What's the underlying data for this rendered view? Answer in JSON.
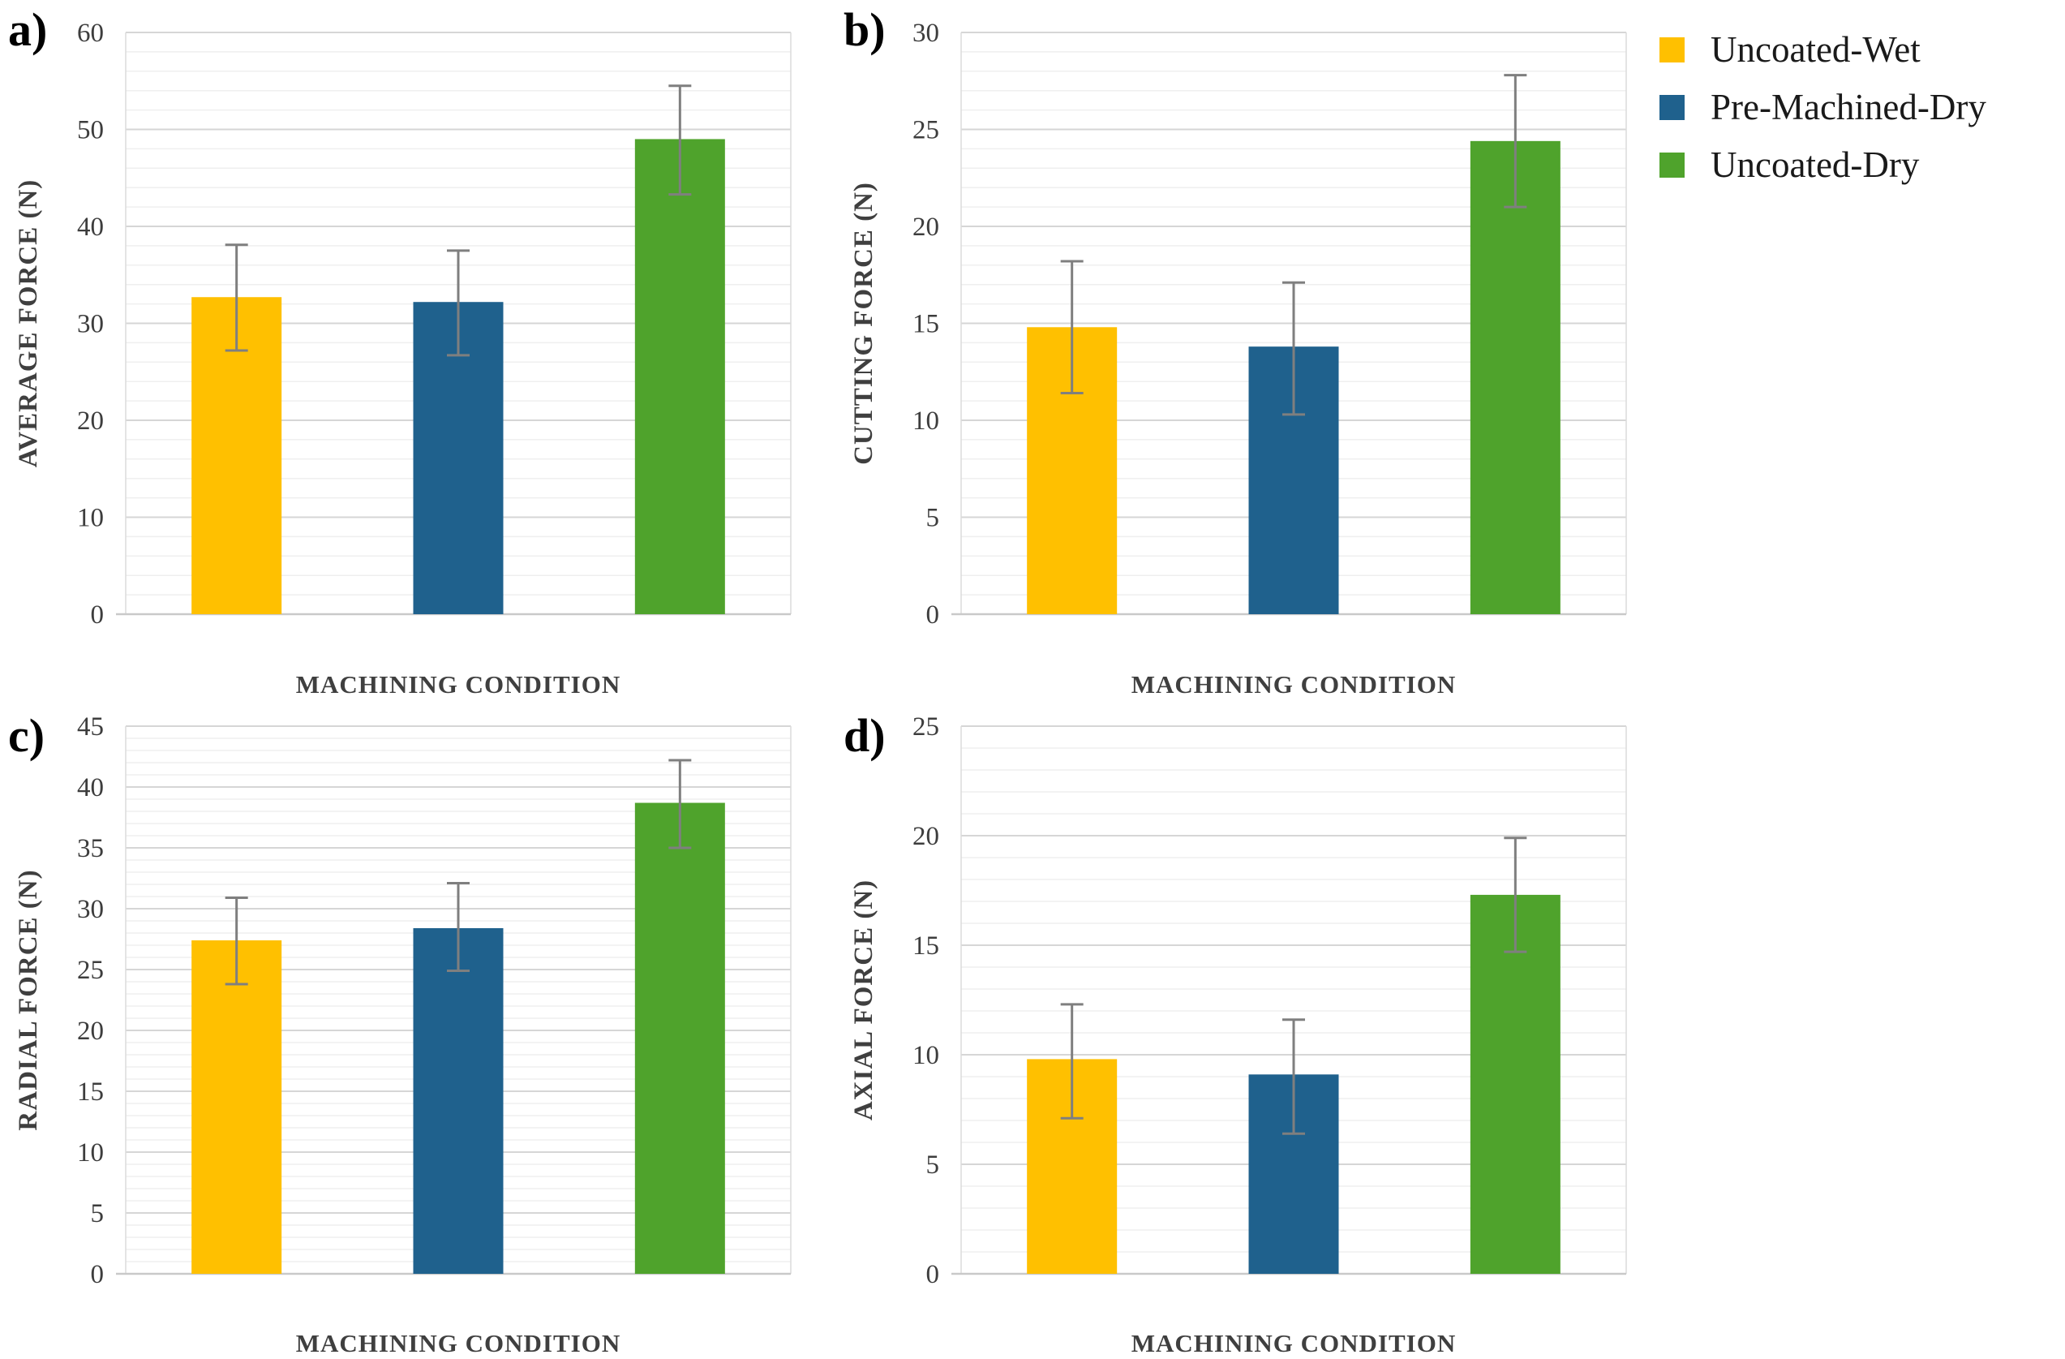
{
  "figure": {
    "background": "#FFFFFF",
    "panel_letters": [
      "a)",
      "b)",
      "c)",
      "d)"
    ]
  },
  "legend": {
    "position": "top-right",
    "items": [
      {
        "label": "Uncoated-Wet",
        "color": "#FFC000"
      },
      {
        "label": "Pre-Machined-Dry",
        "color": "#1F618D"
      },
      {
        "label": "Uncoated-Dry",
        "color": "#4FA32C"
      }
    ]
  },
  "styles": {
    "major_gridline": "#D6D6D6",
    "minor_gridline": "#EFEFEF",
    "axis_line": "#C9C9C9",
    "plot_border": "#DBDBDB",
    "error_bar": "#7F7F7F",
    "tick_label": "#3D3D3D",
    "axis_title": "#3F3F3F"
  },
  "chart_data": [
    {
      "panel_label": "a)",
      "type": "bar",
      "xlabel": "MACHINING CONDITION",
      "ylabel": "AVERAGE FORCE (N)",
      "categories": [
        "Uncoated-Wet",
        "Pre-Machined-Dry",
        "Uncoated-Dry"
      ],
      "values": [
        32.7,
        32.2,
        49.0
      ],
      "error_low": [
        27.2,
        26.7,
        43.3
      ],
      "error_high": [
        38.1,
        37.5,
        54.5
      ],
      "bar_colors": [
        "#FFC000",
        "#1F618D",
        "#4FA32C"
      ],
      "ylim": [
        0,
        60
      ],
      "ytick_step": 10,
      "minor_grid_step": 2,
      "grid": true,
      "legend_position": "figure-top-right"
    },
    {
      "panel_label": "b)",
      "type": "bar",
      "xlabel": "MACHINING CONDITION",
      "ylabel": "CUTTING FORCE (N)",
      "categories": [
        "Uncoated-Wet",
        "Pre-Machined-Dry",
        "Uncoated-Dry"
      ],
      "values": [
        14.8,
        13.8,
        24.4
      ],
      "error_low": [
        11.4,
        10.3,
        21.0
      ],
      "error_high": [
        18.2,
        17.1,
        27.8
      ],
      "bar_colors": [
        "#FFC000",
        "#1F618D",
        "#4FA32C"
      ],
      "ylim": [
        0,
        30
      ],
      "ytick_step": 5,
      "minor_grid_step": 1,
      "grid": true,
      "legend_position": "figure-top-right"
    },
    {
      "panel_label": "c)",
      "type": "bar",
      "xlabel": "MACHINING CONDITION",
      "ylabel": "RADIAL FORCE (N)",
      "categories": [
        "Uncoated-Wet",
        "Pre-Machined-Dry",
        "Uncoated-Dry"
      ],
      "values": [
        27.4,
        28.4,
        38.7
      ],
      "error_low": [
        23.8,
        24.9,
        35.0
      ],
      "error_high": [
        30.9,
        32.1,
        42.2
      ],
      "bar_colors": [
        "#FFC000",
        "#1F618D",
        "#4FA32C"
      ],
      "ylim": [
        0,
        45
      ],
      "ytick_step": 5,
      "minor_grid_step": 1,
      "grid": true,
      "legend_position": "figure-top-right"
    },
    {
      "panel_label": "d)",
      "type": "bar",
      "xlabel": "MACHINING CONDITION",
      "ylabel": "AXIAL FORCE (N)",
      "categories": [
        "Uncoated-Wet",
        "Pre-Machined-Dry",
        "Uncoated-Dry"
      ],
      "values": [
        9.8,
        9.1,
        17.3
      ],
      "error_low": [
        7.1,
        6.4,
        14.7
      ],
      "error_high": [
        12.3,
        11.6,
        19.9
      ],
      "bar_colors": [
        "#FFC000",
        "#1F618D",
        "#4FA32C"
      ],
      "ylim": [
        0,
        25
      ],
      "ytick_step": 5,
      "minor_grid_step": 1,
      "grid": true,
      "legend_position": "figure-top-right"
    }
  ]
}
